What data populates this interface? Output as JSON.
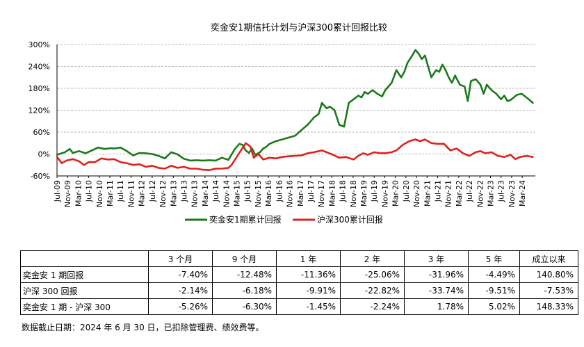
{
  "chart_data": {
    "type": "line",
    "title": "奕金安1期信托计划与沪深300累计回报比较",
    "xlabel": "",
    "ylabel": "",
    "ylim": [
      -60,
      300
    ],
    "y_ticks": [
      "300%",
      "240%",
      "180%",
      "120%",
      "60%",
      "0%",
      "-60%"
    ],
    "x_ticks": [
      "Jul-09",
      "Nov-09",
      "Mar-10",
      "Jul-10",
      "Nov-10",
      "Mar-11",
      "Jul-11",
      "Nov-11",
      "Mar-12",
      "Jul-12",
      "Nov-12",
      "Mar-13",
      "Jul-13",
      "Nov-13",
      "Mar-14",
      "Jul-14",
      "Nov-14",
      "Mar-15",
      "Jul-15",
      "Nov-15",
      "Mar-16",
      "Jul-16",
      "Nov-16",
      "Mar-17",
      "Jul-17",
      "Nov-17",
      "Mar-18",
      "Jul-18",
      "Nov-18",
      "Mar-19",
      "Jul-19",
      "Nov-19",
      "Mar-20",
      "Jul-20",
      "Nov-20",
      "Mar-21",
      "Jul-21",
      "Nov-21",
      "Mar-22",
      "Jul-22",
      "Nov-22",
      "Mar-23",
      "Jul-23",
      "Nov-23",
      "Mar-24"
    ],
    "grid": "horizontal dashed",
    "legend_position": "bottom",
    "series": [
      {
        "name": "奕金安1期累计回报",
        "color": "#1a7a1a",
        "x": [
          2009.5,
          2009.75,
          2009.9,
          2010.0,
          2010.2,
          2010.4,
          2010.6,
          2010.8,
          2011.0,
          2011.2,
          2011.3,
          2011.5,
          2011.7,
          2011.9,
          2012.1,
          2012.3,
          2012.5,
          2012.7,
          2012.9,
          2013.1,
          2013.3,
          2013.5,
          2013.7,
          2013.9,
          2014.1,
          2014.3,
          2014.5,
          2014.7,
          2014.9,
          2015.1,
          2015.25,
          2015.35,
          2015.45,
          2015.55,
          2015.65,
          2015.75,
          2015.9,
          2016.0,
          2016.1,
          2016.2,
          2016.4,
          2016.6,
          2016.8,
          2017.0,
          2017.2,
          2017.4,
          2017.5,
          2017.6,
          2017.75,
          2017.85,
          2018.0,
          2018.1,
          2018.25,
          2018.4,
          2018.55,
          2018.7,
          2018.85,
          2019.0,
          2019.1,
          2019.2,
          2019.3,
          2019.45,
          2019.6,
          2019.75,
          2019.85,
          2019.95,
          2020.05,
          2020.2,
          2020.35,
          2020.45,
          2020.55,
          2020.7,
          2020.8,
          2020.9,
          2021.0,
          2021.1,
          2021.2,
          2021.3,
          2021.45,
          2021.55,
          2021.65,
          2021.75,
          2021.85,
          2021.95,
          2022.05,
          2022.2,
          2022.35,
          2022.45,
          2022.55,
          2022.7,
          2022.85,
          2022.95,
          2023.05,
          2023.2,
          2023.35,
          2023.5,
          2023.6,
          2023.7,
          2023.8,
          2023.9,
          2024.0,
          2024.15,
          2024.3,
          2024.4,
          2024.5
        ],
        "values": [
          -2,
          5,
          14,
          3,
          8,
          2,
          10,
          18,
          14,
          16,
          15,
          18,
          8,
          -4,
          3,
          2,
          0,
          -5,
          -12,
          5,
          -1,
          -13,
          -18,
          -17,
          -18,
          -17,
          -18,
          -10,
          -16,
          13,
          28,
          25,
          10,
          3,
          15,
          -2,
          5,
          15,
          20,
          28,
          35,
          40,
          45,
          50,
          65,
          80,
          90,
          100,
          110,
          140,
          125,
          130,
          120,
          80,
          75,
          140,
          150,
          160,
          155,
          170,
          165,
          175,
          165,
          158,
          175,
          185,
          195,
          230,
          210,
          225,
          250,
          270,
          285,
          275,
          260,
          270,
          240,
          210,
          230,
          225,
          245,
          230,
          210,
          195,
          215,
          190,
          185,
          145,
          200,
          205,
          190,
          165,
          190,
          175,
          165,
          150,
          160,
          145,
          148,
          155,
          162,
          165,
          155,
          148,
          140
        ]
      },
      {
        "name": "沪深300累计回报",
        "color": "#e0201c",
        "x": [
          2009.5,
          2009.65,
          2009.8,
          2010.0,
          2010.2,
          2010.35,
          2010.5,
          2010.7,
          2010.9,
          2011.1,
          2011.3,
          2011.5,
          2011.7,
          2011.9,
          2012.1,
          2012.3,
          2012.5,
          2012.7,
          2012.9,
          2013.1,
          2013.3,
          2013.5,
          2013.7,
          2013.9,
          2014.1,
          2014.3,
          2014.5,
          2014.7,
          2014.9,
          2015.0,
          2015.15,
          2015.3,
          2015.45,
          2015.6,
          2015.7,
          2015.85,
          2016.0,
          2016.2,
          2016.4,
          2016.6,
          2016.8,
          2017.0,
          2017.2,
          2017.4,
          2017.6,
          2017.85,
          2018.0,
          2018.2,
          2018.4,
          2018.6,
          2018.85,
          2019.0,
          2019.15,
          2019.3,
          2019.5,
          2019.7,
          2019.9,
          2020.05,
          2020.2,
          2020.4,
          2020.6,
          2020.8,
          2020.95,
          2021.1,
          2021.3,
          2021.5,
          2021.7,
          2021.9,
          2022.1,
          2022.3,
          2022.5,
          2022.7,
          2022.85,
          2023.0,
          2023.2,
          2023.4,
          2023.6,
          2023.8,
          2023.95,
          2024.1,
          2024.3,
          2024.5
        ],
        "values": [
          -8,
          -25,
          -18,
          -14,
          -20,
          -30,
          -22,
          -22,
          -12,
          -15,
          -14,
          -22,
          -25,
          -30,
          -28,
          -35,
          -32,
          -38,
          -40,
          -32,
          -38,
          -35,
          -40,
          -40,
          -43,
          -44,
          -40,
          -40,
          -38,
          -30,
          -10,
          10,
          30,
          20,
          -10,
          0,
          -15,
          -10,
          -12,
          -8,
          -6,
          -5,
          -4,
          2,
          5,
          10,
          5,
          -2,
          -10,
          -8,
          -15,
          -5,
          2,
          -2,
          5,
          2,
          3,
          5,
          10,
          25,
          35,
          40,
          35,
          40,
          30,
          28,
          28,
          10,
          15,
          2,
          -5,
          5,
          8,
          2,
          5,
          -5,
          -8,
          -2,
          -14,
          -8,
          -5,
          -8
        ]
      }
    ]
  },
  "table": {
    "headers": [
      "",
      "3 个月",
      "9 个月",
      "1 年",
      "2 年",
      "3 年",
      "5 年",
      "成立以来"
    ],
    "rows": [
      {
        "label": "奕金安 1 期回报",
        "values": [
          "-7.40%",
          "-12.48%",
          "-11.36%",
          "-25.06%",
          "-31.96%",
          "-4.49%",
          "140.80%"
        ]
      },
      {
        "label": "沪深 300 回报",
        "values": [
          "-2.14%",
          "-6.18%",
          "-9.91%",
          "-22.82%",
          "-33.74%",
          "-9.51%",
          "-7.53%"
        ]
      },
      {
        "label": "奕金安 1 期 - 沪深 300",
        "values": [
          "-5.26%",
          "-6.30%",
          "-1.45%",
          "-2.24%",
          "1.78%",
          "5.02%",
          "148.33%"
        ]
      }
    ]
  },
  "footnote": "数据截止日期：2024 年 6 月 30 日，已扣除管理费、绩效费等。"
}
